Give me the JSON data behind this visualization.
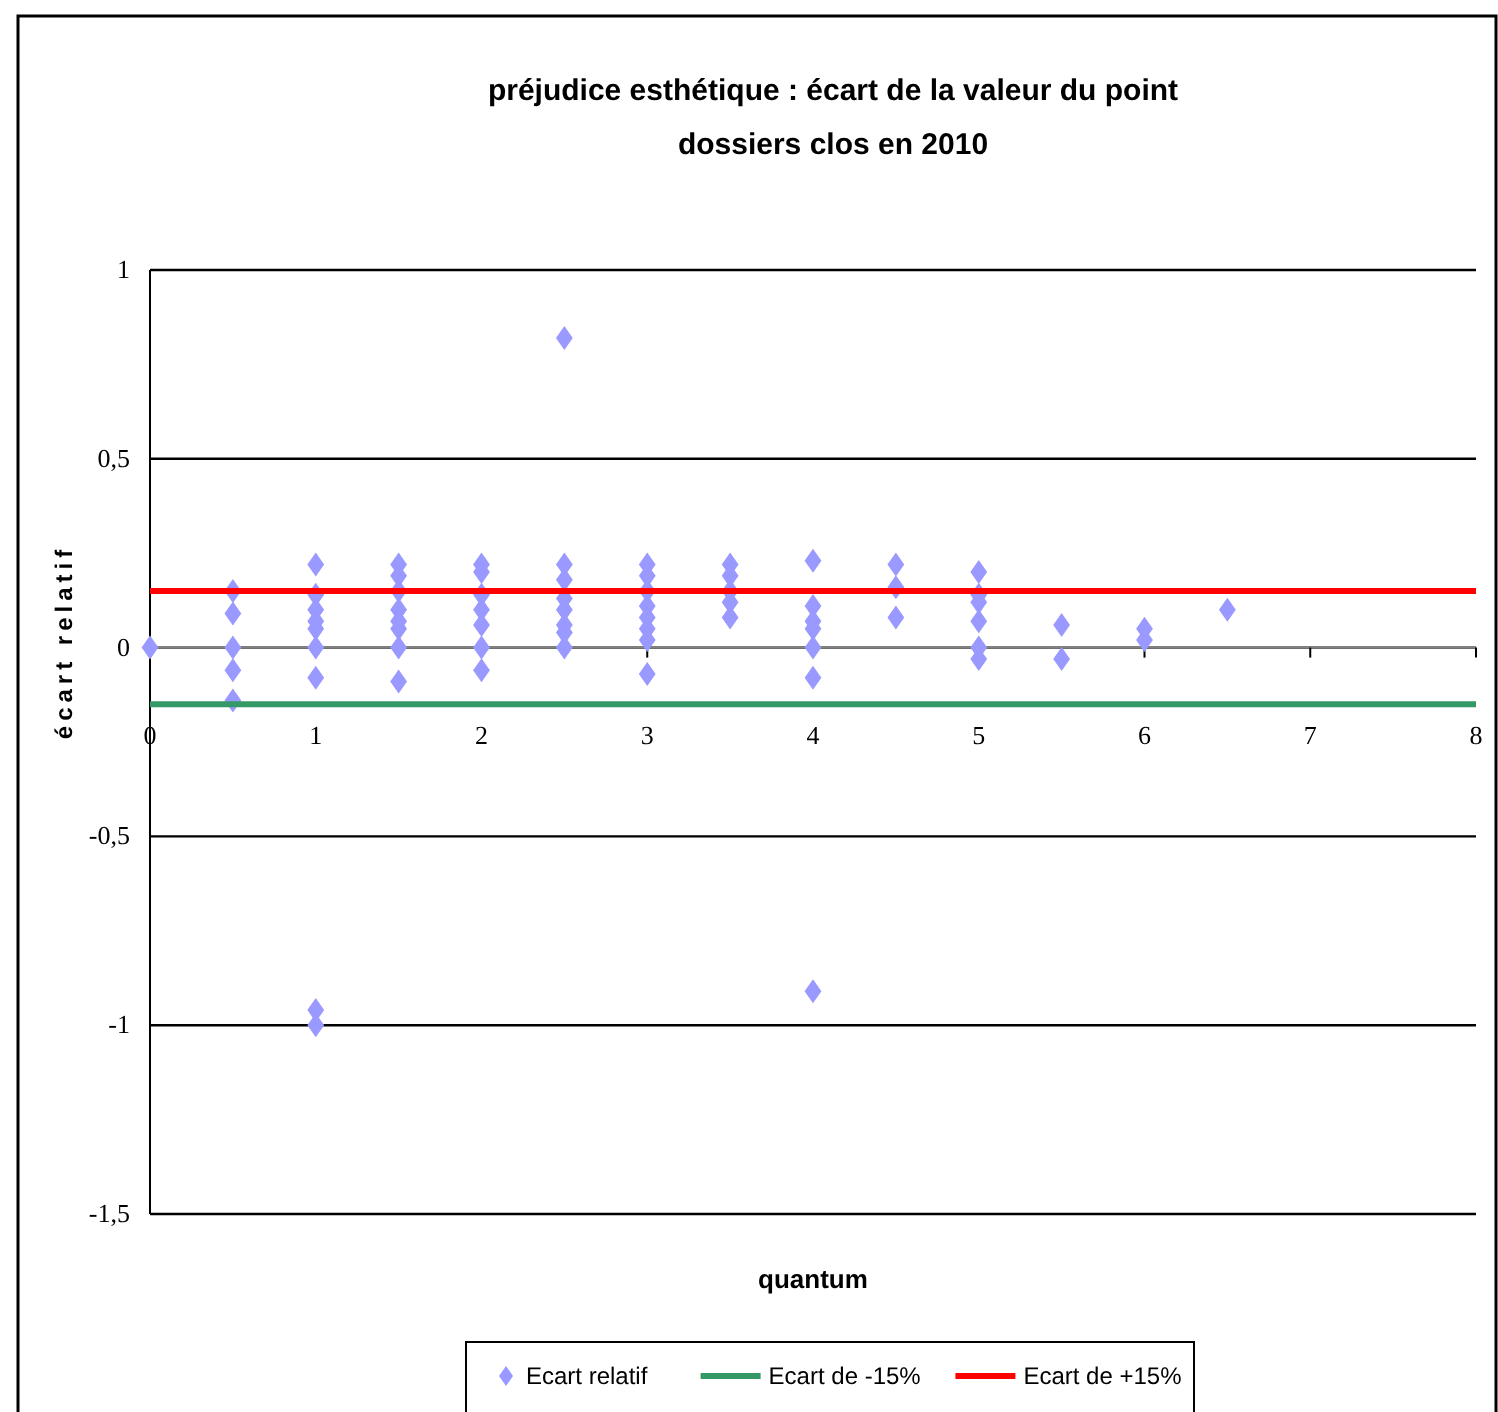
{
  "chart_data": {
    "type": "scatter",
    "title": "préjudice esthétique : écart de la valeur du point\ndossiers clos en 2010",
    "xlabel": "quantum",
    "ylabel": "écart relatif",
    "xlim": [
      0,
      8
    ],
    "xticks": [
      0,
      1,
      2,
      3,
      4,
      5,
      6,
      7,
      8
    ],
    "ylim": [
      -1.5,
      1
    ],
    "yticks": [
      1,
      {
        "value": 0.5,
        "label": "0,5"
      },
      0,
      {
        "value": -0.5,
        "label": "-0,5"
      },
      -1,
      {
        "value": -1.5,
        "label": "-1,5"
      }
    ],
    "grid": "y",
    "legend": "bottom",
    "marker": "diamond",
    "series": [
      {
        "name": "Ecart relatif",
        "type": "scatter",
        "color": "#9999ff",
        "x": [
          0,
          0.5,
          0.5,
          0.5,
          0.5,
          0.5,
          1,
          1,
          1,
          1,
          1,
          1,
          1,
          1,
          1,
          1.5,
          1.5,
          1.5,
          1.5,
          1.5,
          1.5,
          1.5,
          1.5,
          2,
          2,
          2,
          2,
          2,
          2,
          2,
          2.5,
          2.5,
          2.5,
          2.5,
          2.5,
          2.5,
          2.5,
          2.5,
          3,
          3,
          3,
          3,
          3,
          3,
          3,
          3,
          3.5,
          3.5,
          3.5,
          3.5,
          3.5,
          4,
          4,
          4,
          4,
          4,
          4,
          4,
          4.5,
          4.5,
          4.5,
          5,
          5,
          5,
          5,
          5,
          5,
          5.5,
          5.5,
          6,
          6,
          6.5
        ],
        "values": [
          0,
          0.15,
          0.09,
          0,
          -0.06,
          -0.14,
          0.22,
          0.14,
          0.1,
          0.07,
          0.05,
          0,
          -0.08,
          -0.96,
          -1,
          0.22,
          0.19,
          0.15,
          0.1,
          0.07,
          0.05,
          0,
          -0.09,
          0.22,
          0.2,
          0.14,
          0.1,
          0.06,
          0,
          -0.06,
          0.82,
          0.22,
          0.18,
          0.13,
          0.1,
          0.06,
          0.04,
          0,
          0.22,
          0.19,
          0.15,
          0.11,
          0.08,
          0.05,
          0.02,
          -0.07,
          0.22,
          0.19,
          0.15,
          0.12,
          0.08,
          0.23,
          0.11,
          0.07,
          0.05,
          0,
          -0.08,
          -0.91,
          0.22,
          0.16,
          0.08,
          0.2,
          0.14,
          0.12,
          0.07,
          0,
          -0.03,
          0.06,
          -0.03,
          0.05,
          0.02,
          0.1
        ]
      },
      {
        "name": "Ecart de  -15%",
        "type": "line",
        "marker": "none",
        "color": "#339966",
        "x": [
          0,
          8
        ],
        "values": [
          -0.15,
          -0.15
        ]
      },
      {
        "name": "Ecart de +15%",
        "type": "line",
        "marker": "none",
        "color": "#ff0000",
        "x": [
          0,
          8
        ],
        "values": [
          0.15,
          0.15
        ]
      }
    ]
  }
}
